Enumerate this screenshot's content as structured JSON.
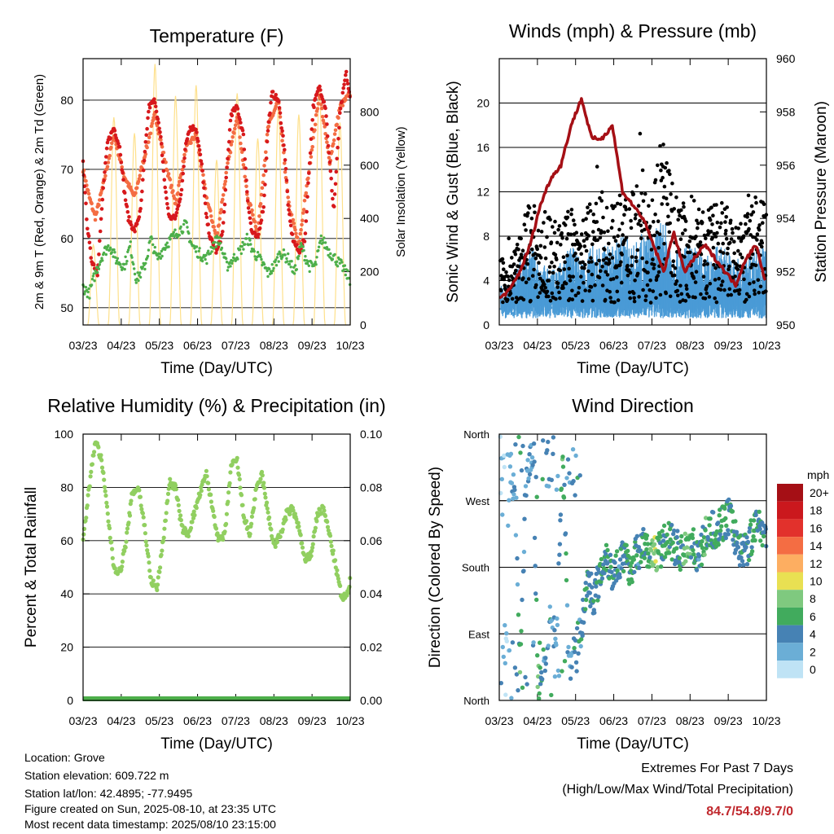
{
  "chart_data": [
    {
      "type": "line",
      "title": "Temperature (F)",
      "xlabel": "Time (Day/UTC)",
      "ylabel": "2m & 9m T (Red, Orange) & 2m Td (Green)",
      "ylabel_right": "Solar Insolation (Yellow)",
      "ylim": [
        47.5,
        86
      ],
      "ylim_right": [
        0,
        1000
      ],
      "x_ticks": [
        "03/23",
        "04/23",
        "05/23",
        "06/23",
        "07/23",
        "08/23",
        "09/23",
        "10/23"
      ],
      "y_ticks": [
        "50",
        "60",
        "70",
        "80"
      ],
      "y_ticks_right": [
        "0",
        "200",
        "400",
        "600",
        "800"
      ],
      "grid": true,
      "series": [
        {
          "name": "2m T",
          "color": "#d7191c",
          "x": [
            0.0,
            0.2,
            0.4,
            0.7,
            1.0,
            1.2,
            1.5,
            1.8,
            2.0,
            2.2,
            2.5,
            2.8,
            3.0,
            3.2,
            3.5,
            3.8,
            4.0,
            4.2,
            4.5,
            4.8,
            5.0,
            5.2,
            5.5,
            5.8,
            6.0,
            6.2,
            6.5,
            6.8,
            7.0,
            7.2,
            7.5,
            7.8,
            8.0,
            8.2,
            8.5,
            8.8,
            9.0,
            9.2,
            9.5,
            9.8,
            10.0,
            10.2,
            10.5,
            10.8,
            11.0,
            11.2,
            11.5,
            11.8,
            12.0,
            12.2,
            12.5,
            12.8,
            13.0
          ],
          "y": [
            71,
            62,
            57,
            55,
            68,
            74,
            76,
            73,
            67,
            63,
            61,
            64,
            72,
            79,
            80,
            74,
            67,
            63,
            63,
            67,
            74,
            76,
            76,
            70,
            63,
            60,
            58,
            61,
            70,
            78,
            79,
            75,
            66,
            61,
            60,
            65,
            76,
            81,
            80,
            73,
            64,
            60,
            58,
            60,
            70,
            79,
            82,
            79,
            71,
            64,
            78,
            84,
            80
          ]
        },
        {
          "name": "9m T",
          "color": "#f46d43",
          "x": [
            0.0,
            0.3,
            0.6,
            1.0,
            1.5,
            2.0,
            2.5,
            3.0,
            3.5,
            4.0,
            4.5,
            5.0,
            5.5,
            6.0,
            6.5,
            7.0,
            7.5,
            8.0,
            8.5,
            9.0,
            9.5,
            10.0,
            10.5,
            11.0,
            11.5,
            12.0,
            12.5,
            13.0
          ],
          "y": [
            70,
            66,
            63,
            68,
            75,
            69,
            66,
            72,
            78,
            71,
            65,
            73,
            75,
            66,
            60,
            70,
            78,
            66,
            61,
            76,
            80,
            65,
            59,
            70,
            81,
            71,
            79,
            81
          ]
        },
        {
          "name": "2m Td",
          "color": "#4daf4a",
          "x": [
            0.0,
            0.3,
            0.6,
            1.0,
            1.3,
            1.6,
            2.0,
            2.3,
            2.6,
            3.0,
            3.3,
            3.6,
            4.0,
            4.3,
            4.6,
            5.0,
            5.3,
            5.6,
            6.0,
            6.3,
            6.6,
            7.0,
            7.3,
            7.6,
            8.0,
            8.3,
            8.6,
            9.0,
            9.3,
            9.6,
            10.0,
            10.3,
            10.6,
            11.0,
            11.3,
            11.6,
            12.0,
            12.3,
            12.6,
            13.0
          ],
          "y": [
            53,
            52,
            55,
            58,
            59,
            57,
            56,
            59,
            54,
            56,
            60,
            57,
            59,
            60,
            61,
            62,
            59,
            58,
            57,
            59,
            60,
            56,
            57,
            58,
            60,
            58,
            57,
            55,
            56,
            58,
            57,
            55,
            59,
            56,
            56,
            60,
            58,
            57,
            56,
            54
          ]
        },
        {
          "name": "Solar Insolation",
          "color": "#fee08b",
          "axis": "right",
          "daily_peaks": [
            300,
            780,
            720,
            980,
            860,
            900,
            620,
            870,
            700,
            810,
            790,
            890,
            760,
            600
          ]
        }
      ]
    },
    {
      "type": "scatter",
      "title": "Winds (mph) & Pressure (mb)",
      "xlabel": "Time (Day/UTC)",
      "ylabel": "Sonic Wind & Gust (Blue, Black)",
      "ylabel_right": "Station Pressure (Maroon)",
      "ylim": [
        0,
        24
      ],
      "ylim_right": [
        950,
        960
      ],
      "x_ticks": [
        "03/23",
        "04/23",
        "05/23",
        "06/23",
        "07/23",
        "08/23",
        "09/23",
        "10/23"
      ],
      "y_ticks": [
        "0",
        "4",
        "8",
        "12",
        "16",
        "20"
      ],
      "y_ticks_right": [
        "950",
        "952",
        "954",
        "956",
        "958",
        "960"
      ],
      "grid": true,
      "series": [
        {
          "name": "Station Pressure",
          "color": "#a50f15",
          "x": [
            0.0,
            0.5,
            1.0,
            1.5,
            2.0,
            2.5,
            3.0,
            3.5,
            4.0,
            4.5,
            5.0,
            5.5,
            6.0,
            6.5,
            7.0,
            7.5,
            8.0,
            8.5,
            9.0,
            9.5,
            10.0,
            10.5,
            11.0,
            11.5,
            12.0,
            12.5,
            13.0
          ],
          "y": [
            951,
            951.3,
            952,
            953,
            954.5,
            955.5,
            956,
            957.5,
            958.5,
            957,
            957,
            957.5,
            955,
            954.5,
            954,
            953,
            952,
            953.5,
            952,
            952.5,
            953,
            952.5,
            952,
            951.5,
            952.5,
            953,
            951.5
          ]
        },
        {
          "name": "Gust",
          "color": "#000000",
          "x": [
            0.5,
            1.0,
            1.5,
            2.0,
            2.5,
            3.0,
            3.5,
            4.0,
            4.5,
            5.0,
            5.5,
            6.0,
            6.5,
            7.0,
            7.5,
            8.0,
            8.5,
            9.0,
            9.5,
            10.0,
            10.5,
            11.0,
            11.5,
            12.0,
            12.5,
            13.0
          ],
          "y": [
            6,
            8,
            12,
            9,
            10,
            9,
            11,
            10,
            11,
            12,
            11,
            12,
            13,
            14,
            14,
            18,
            12,
            11,
            12,
            10,
            11,
            11,
            9,
            10,
            12,
            11
          ]
        },
        {
          "name": "Sonic Wind",
          "color": "#4a9bd6",
          "x": [
            0.5,
            1.0,
            1.5,
            2.0,
            2.5,
            3.0,
            3.5,
            4.0,
            4.5,
            5.0,
            5.5,
            6.0,
            6.5,
            7.0,
            7.5,
            8.0,
            8.5,
            9.0,
            9.5,
            10.0,
            10.5,
            11.0,
            11.5,
            12.0,
            12.5,
            13.0
          ],
          "y": [
            3,
            5,
            6,
            5,
            4,
            5,
            6,
            5,
            6,
            6,
            6,
            7,
            6,
            7,
            7,
            8,
            6,
            6,
            6,
            5,
            6,
            6,
            5,
            5,
            6,
            6
          ]
        }
      ]
    },
    {
      "type": "line",
      "title": "Relative Humidity (%) & Precipitation (in)",
      "xlabel": "Time (Day/UTC)",
      "ylabel": "Percent & Total Rainfall",
      "ylim": [
        0,
        100
      ],
      "ylim_right": [
        0,
        0.1
      ],
      "x_ticks": [
        "03/23",
        "04/23",
        "05/23",
        "06/23",
        "07/23",
        "08/23",
        "09/23",
        "10/23"
      ],
      "y_ticks": [
        "0",
        "20",
        "40",
        "60",
        "80",
        "100"
      ],
      "y_ticks_right": [
        "0.00",
        "0.02",
        "0.04",
        "0.06",
        "0.08",
        "0.10"
      ],
      "grid": true,
      "series": [
        {
          "name": "Relative Humidity",
          "color": "#91cf60",
          "x": [
            0.0,
            0.3,
            0.6,
            0.9,
            1.2,
            1.5,
            1.8,
            2.1,
            2.4,
            2.7,
            3.0,
            3.3,
            3.6,
            3.9,
            4.2,
            4.5,
            4.8,
            5.1,
            5.4,
            5.7,
            6.0,
            6.3,
            6.6,
            6.9,
            7.2,
            7.5,
            7.8,
            8.1,
            8.4,
            8.7,
            9.0,
            9.3,
            9.6,
            9.9,
            10.2,
            10.5,
            10.8,
            11.1,
            11.4,
            11.7,
            12.0,
            12.3,
            12.6,
            12.9,
            13.0
          ],
          "y": [
            60,
            80,
            98,
            90,
            70,
            50,
            48,
            60,
            78,
            80,
            65,
            45,
            42,
            60,
            82,
            80,
            65,
            62,
            70,
            78,
            85,
            72,
            60,
            62,
            88,
            90,
            70,
            62,
            78,
            85,
            70,
            58,
            62,
            70,
            72,
            65,
            52,
            55,
            70,
            72,
            62,
            50,
            38,
            40,
            45
          ]
        },
        {
          "name": "Total Precipitation",
          "color": "#4daf4a",
          "axis": "right",
          "constant": 0.0
        }
      ]
    },
    {
      "type": "scatter",
      "title": "Wind Direction",
      "xlabel": "Time (Day/UTC)",
      "ylabel": "Direction (Colored By Speed)",
      "x_ticks": [
        "03/23",
        "04/23",
        "05/23",
        "06/23",
        "07/23",
        "08/23",
        "09/23",
        "10/23"
      ],
      "y_ticks": [
        "North",
        "East",
        "South",
        "West",
        "North"
      ],
      "ylim": [
        0,
        360
      ],
      "grid": true,
      "colorbar": {
        "title": "mph",
        "labels": [
          "20+",
          "18",
          "16",
          "14",
          "12",
          "10",
          "8",
          "6",
          "4",
          "2",
          "0"
        ],
        "colors": [
          "#a50f15",
          "#cb181d",
          "#e2312c",
          "#f46d43",
          "#fdae61",
          "#e9e052",
          "#7fc97f",
          "#41ab5d",
          "#4682b4",
          "#6baed6",
          "#bfe3f5"
        ]
      },
      "series": [
        {
          "name": "Direction",
          "x": [
            0.1,
            0.3,
            0.5,
            0.8,
            1.0,
            1.3,
            1.6,
            1.9,
            2.2,
            2.5,
            2.8,
            3.1,
            3.4,
            3.7,
            4.0,
            4.3,
            4.6,
            4.9,
            5.2,
            5.5,
            5.8,
            6.1,
            6.4,
            6.7,
            7.0,
            7.3,
            7.6,
            7.9,
            8.2,
            8.5,
            8.8,
            9.1,
            9.4,
            9.7,
            10.0,
            10.3,
            10.6,
            10.9,
            11.2,
            11.5,
            11.8,
            12.1,
            12.4,
            12.7,
            13.0
          ],
          "y": [
            355,
            30,
            330,
            260,
            20,
            300,
            340,
            30,
            60,
            110,
            80,
            350,
            40,
            70,
            100,
            160,
            140,
            170,
            200,
            170,
            190,
            190,
            180,
            200,
            210,
            195,
            200,
            205,
            220,
            210,
            200,
            210,
            215,
            190,
            220,
            230,
            230,
            240,
            250,
            220,
            200,
            210,
            230,
            240,
            220
          ],
          "speeds": [
            2,
            1,
            2,
            3,
            6,
            3,
            2,
            7,
            3,
            4,
            2,
            6,
            3,
            4,
            4,
            5,
            4,
            5,
            5,
            5,
            4,
            5,
            6,
            4,
            5,
            6,
            9,
            4,
            6,
            5,
            5,
            7,
            6,
            4,
            6,
            5,
            5,
            6,
            4,
            5,
            4,
            5,
            6,
            5,
            4
          ]
        }
      ]
    }
  ],
  "footer": {
    "location": "Location: Grove",
    "elevation": "Station elevation: 609.722 m",
    "latlon": "Station lat/lon: 42.4895; -77.9495",
    "created": "Figure created on Sun, 2025-08-10, at 23:35 UTC",
    "timestamp": "Most recent data timestamp: 2025/08/10 23:15:00"
  },
  "extremes": {
    "line1": "Extremes For Past 7 Days",
    "line2": "(High/Low/Max Wind/Total Precipitation)",
    "value": "84.7/54.8/9.7/0"
  }
}
